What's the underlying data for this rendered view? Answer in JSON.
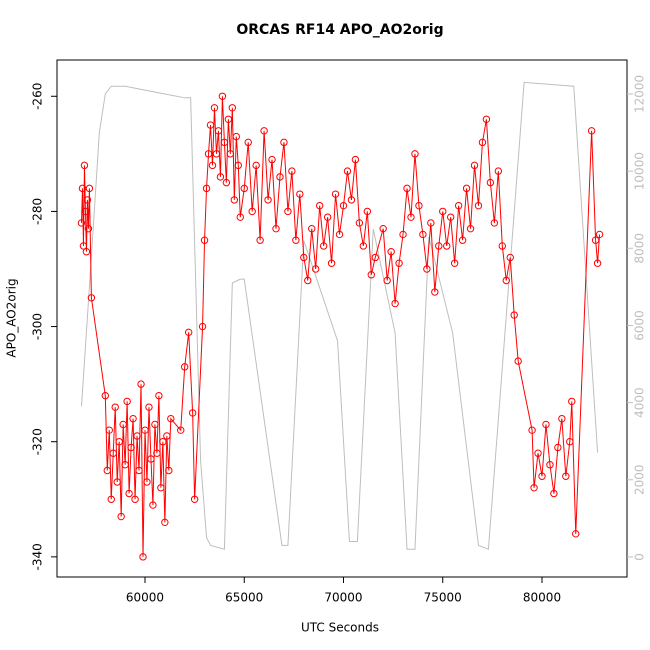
{
  "chart_data": {
    "type": "line",
    "title": "ORCAS RF14 APO_AO2orig",
    "xlabel": "UTC Seconds",
    "ylabel": "APO_AO2orig",
    "xlim": [
      55567,
      84282
    ],
    "ylim": [
      -343.5,
      -253.7
    ],
    "y2lim": [
      -520,
      12880
    ],
    "xticks": [
      60000,
      65000,
      70000,
      75000,
      80000
    ],
    "yticks": [
      -340,
      -320,
      -300,
      -280,
      -260
    ],
    "y2ticks": [
      0,
      2000,
      4000,
      6000,
      8000,
      10000,
      12000
    ],
    "series": [
      {
        "color": "#ff0000",
        "markers": true,
        "x": [
          56800,
          56850,
          56900,
          56950,
          57000,
          57050,
          57100,
          57150,
          57200,
          57300,
          58000,
          58100,
          58200,
          58300,
          58400,
          58500,
          58600,
          58700,
          58800,
          58900,
          59000,
          59100,
          59200,
          59300,
          59400,
          59500,
          59600,
          59700,
          59800,
          59900,
          60000,
          60100,
          60200,
          60300,
          60400,
          60500,
          60600,
          60700,
          60800,
          60900,
          61000,
          61100,
          61200,
          61300,
          61800,
          62000,
          62200,
          62400,
          62500,
          62900,
          63000,
          63100,
          63200,
          63300,
          63400,
          63500,
          63600,
          63700,
          63800,
          63900,
          64000,
          64100,
          64200,
          64300,
          64400,
          64500,
          64600,
          64700,
          64800,
          65000,
          65200,
          65400,
          65600,
          65800,
          66000,
          66200,
          66400,
          66600,
          66800,
          67000,
          67200,
          67400,
          67600,
          67800,
          68000,
          68200,
          68400,
          68600,
          68800,
          69000,
          69200,
          69400,
          69600,
          69800,
          70000,
          70200,
          70400,
          70600,
          70800,
          71000,
          71200,
          71400,
          71600,
          72000,
          72200,
          72400,
          72600,
          72800,
          73000,
          73200,
          73400,
          73600,
          73800,
          74000,
          74200,
          74400,
          74600,
          74800,
          75000,
          75200,
          75400,
          75600,
          75800,
          76000,
          76200,
          76400,
          76600,
          76800,
          77000,
          77200,
          77400,
          77600,
          77800,
          78000,
          78200,
          78400,
          78600,
          78800,
          79500,
          79600,
          79800,
          80000,
          80200,
          80400,
          80600,
          80800,
          81000,
          81200,
          81400,
          81500,
          81700,
          82500,
          82700,
          82800,
          82900
        ],
        "values": [
          -282,
          -276,
          -286,
          -272,
          -280,
          -287,
          -278,
          -283,
          -276,
          -295,
          -312,
          -325,
          -318,
          -330,
          -322,
          -314,
          -327,
          -320,
          -333,
          -317,
          -324,
          -313,
          -329,
          -321,
          -316,
          -330,
          -319,
          -325,
          -310,
          -340,
          -318,
          -327,
          -314,
          -323,
          -331,
          -317,
          -322,
          -312,
          -328,
          -320,
          -334,
          -319,
          -325,
          -316,
          -318,
          -307,
          -301,
          -315,
          -330,
          -300,
          -285,
          -276,
          -270,
          -265,
          -272,
          -262,
          -270,
          -266,
          -274,
          -260,
          -268,
          -275,
          -264,
          -270,
          -262,
          -278,
          -267,
          -272,
          -281,
          -276,
          -268,
          -280,
          -272,
          -285,
          -266,
          -278,
          -271,
          -283,
          -274,
          -268,
          -280,
          -273,
          -285,
          -277,
          -288,
          -292,
          -283,
          -290,
          -279,
          -286,
          -281,
          -289,
          -277,
          -284,
          -279,
          -273,
          -278,
          -271,
          -282,
          -286,
          -280,
          -291,
          -288,
          -283,
          -292,
          -287,
          -296,
          -289,
          -284,
          -276,
          -281,
          -270,
          -279,
          -284,
          -290,
          -282,
          -294,
          -286,
          -280,
          -286,
          -281,
          -289,
          -279,
          -285,
          -276,
          -283,
          -272,
          -279,
          -268,
          -264,
          -275,
          -282,
          -273,
          -286,
          -292,
          -288,
          -298,
          -306,
          -318,
          -328,
          -322,
          -326,
          -317,
          -324,
          -329,
          -321,
          -316,
          -326,
          -320,
          -313,
          -336,
          -266,
          -285,
          -289,
          -284
        ]
      },
      {
        "color": "#bebebe",
        "axis": "y2",
        "markers": false,
        "x": [
          56800,
          57200,
          57700,
          58000,
          58300,
          59000,
          60000,
          61000,
          62000,
          62300,
          62800,
          63100,
          63300,
          64000,
          64400,
          64800,
          65000,
          66900,
          67200,
          68000,
          69700,
          70300,
          70700,
          71500,
          72600,
          73200,
          73600,
          74300,
          75500,
          76800,
          77300,
          79100,
          81600,
          82800
        ],
        "values": [
          3900,
          7000,
          11000,
          12000,
          12200,
          12200,
          12100,
          12000,
          11900,
          11900,
          2500,
          500,
          300,
          200,
          7100,
          7200,
          7200,
          300,
          300,
          8200,
          5600,
          400,
          400,
          8500,
          5800,
          200,
          200,
          8300,
          5800,
          300,
          200,
          12300,
          12200,
          2700
        ]
      }
    ]
  }
}
